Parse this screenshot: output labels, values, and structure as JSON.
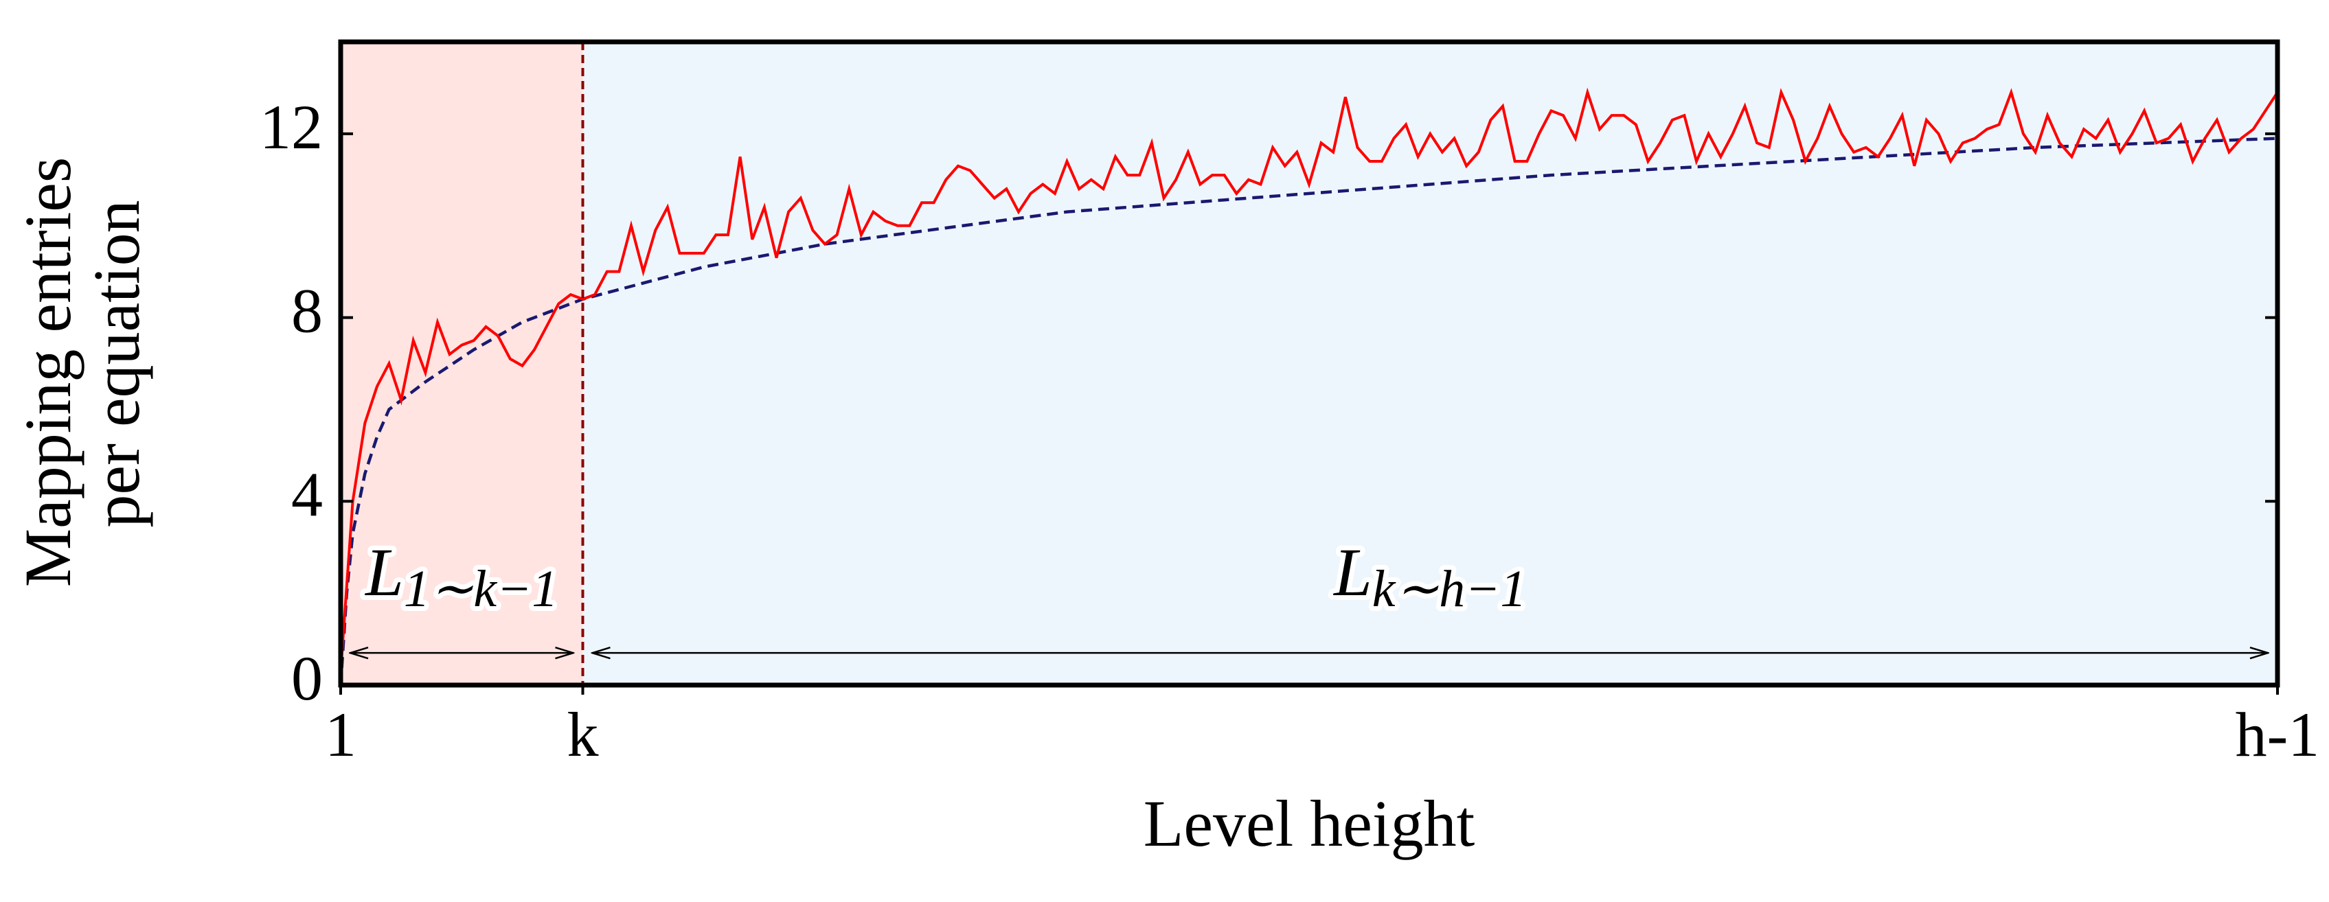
{
  "chart_data": {
    "type": "line",
    "xlabel": "Level height",
    "ylabel": [
      "Mapping entries",
      "per equation"
    ],
    "xlim": [
      1,
      161
    ],
    "ylim": [
      0,
      14
    ],
    "xticks": [
      1,
      {
        "value": 21,
        "label": "k"
      },
      {
        "value": 161,
        "label": "h-1"
      }
    ],
    "yticks": [
      0,
      4,
      8,
      12
    ],
    "highlight_ytick": 8,
    "highlight_color": "#ff0000",
    "regions": [
      {
        "from": 1,
        "to": 21,
        "color": "#ffe4e1"
      },
      {
        "from": 21,
        "to": 161,
        "color": "#eef6fd"
      }
    ],
    "vline": {
      "x": 21,
      "color": "#8b0000"
    },
    "annotations": [
      {
        "text": "L",
        "sub": "1∼k−1",
        "from": 1,
        "to": 21,
        "y": 2.3,
        "arrow_y": 0.7
      },
      {
        "text": "L",
        "sub": "k∼h−1",
        "from": 21,
        "to": 161,
        "y": 2.3,
        "arrow_y": 0.7
      }
    ],
    "series": [
      {
        "color": "#ff0000",
        "style": "solid",
        "x": [
          1,
          2,
          3,
          4,
          5,
          6,
          7,
          8,
          9,
          10,
          11,
          12,
          13,
          14,
          15,
          16,
          17,
          18,
          19,
          20,
          21,
          22,
          23,
          24,
          25,
          26,
          27,
          28,
          29,
          30,
          31,
          32,
          33,
          34,
          35,
          36,
          37,
          38,
          39,
          40,
          41,
          42,
          43,
          44,
          45,
          46,
          47,
          48,
          49,
          50,
          51,
          52,
          53,
          54,
          55,
          56,
          57,
          58,
          59,
          60,
          61,
          62,
          63,
          64,
          65,
          66,
          67,
          68,
          69,
          70,
          71,
          72,
          73,
          74,
          75,
          76,
          77,
          78,
          79,
          80,
          81,
          82,
          83,
          84,
          85,
          86,
          87,
          88,
          89,
          90,
          91,
          92,
          93,
          94,
          95,
          96,
          97,
          98,
          99,
          100,
          101,
          102,
          103,
          104,
          105,
          106,
          107,
          108,
          109,
          110,
          111,
          112,
          113,
          114,
          115,
          116,
          117,
          118,
          119,
          120,
          121,
          122,
          123,
          124,
          125,
          126,
          127,
          128,
          129,
          130,
          131,
          132,
          133,
          134,
          135,
          136,
          137,
          138,
          139,
          140,
          141,
          142,
          143,
          144,
          145,
          146,
          147,
          148,
          149,
          150,
          151,
          152,
          153,
          154,
          155,
          156,
          157,
          158,
          159,
          160,
          161
        ],
        "values": [
          0.3,
          4.0,
          5.7,
          6.5,
          7.0,
          6.2,
          7.5,
          6.8,
          7.9,
          7.2,
          7.4,
          7.5,
          7.8,
          7.6,
          7.1,
          6.95,
          7.3,
          7.8,
          8.3,
          8.5,
          8.4,
          8.5,
          9.0,
          9.0,
          10.0,
          9.0,
          9.9,
          10.4,
          9.4,
          9.4,
          9.4,
          9.8,
          9.8,
          11.5,
          9.7,
          10.4,
          9.3,
          10.3,
          10.6,
          9.9,
          9.6,
          9.8,
          10.8,
          9.8,
          10.3,
          10.1,
          10.0,
          10.0,
          10.5,
          10.5,
          11.0,
          11.3,
          11.2,
          10.9,
          10.6,
          10.8,
          10.3,
          10.7,
          10.9,
          10.7,
          11.4,
          10.8,
          11.0,
          10.8,
          11.5,
          11.1,
          11.1,
          11.8,
          10.6,
          11.0,
          11.6,
          10.9,
          11.1,
          11.1,
          10.7,
          11.0,
          10.9,
          11.7,
          11.3,
          11.6,
          10.9,
          11.8,
          11.6,
          12.8,
          11.7,
          11.4,
          11.4,
          11.9,
          12.2,
          11.5,
          12.0,
          11.6,
          11.9,
          11.3,
          11.6,
          12.3,
          12.6,
          11.4,
          11.4,
          12.0,
          12.5,
          12.4,
          11.9,
          12.9,
          12.1,
          12.4,
          12.4,
          12.2,
          11.4,
          11.8,
          12.3,
          12.4,
          11.4,
          12.0,
          11.5,
          12.0,
          12.6,
          11.8,
          11.7,
          12.9,
          12.3,
          11.4,
          11.9,
          12.6,
          12.0,
          11.6,
          11.7,
          11.5,
          11.9,
          12.4,
          11.3,
          12.3,
          12.0,
          11.4,
          11.8,
          11.9,
          12.1,
          12.2,
          12.9,
          12.0,
          11.6,
          12.4,
          11.8,
          11.5,
          12.1,
          11.9,
          12.3,
          11.6,
          12.0,
          12.5,
          11.8,
          11.9,
          12.2,
          11.4,
          11.9,
          12.3,
          11.6,
          11.9,
          12.1,
          12.5,
          12.9
        ]
      },
      {
        "color": "#191970",
        "style": "dashed",
        "x": [
          1,
          1.5,
          2,
          3,
          4,
          5,
          8,
          12,
          16,
          21,
          31,
          41,
          61,
          81,
          101,
          121,
          141,
          161
        ],
        "values": [
          0,
          2.0,
          3.3,
          4.6,
          5.4,
          6.0,
          6.6,
          7.3,
          7.9,
          8.4,
          9.1,
          9.6,
          10.3,
          10.7,
          11.1,
          11.4,
          11.7,
          11.9
        ]
      }
    ]
  }
}
